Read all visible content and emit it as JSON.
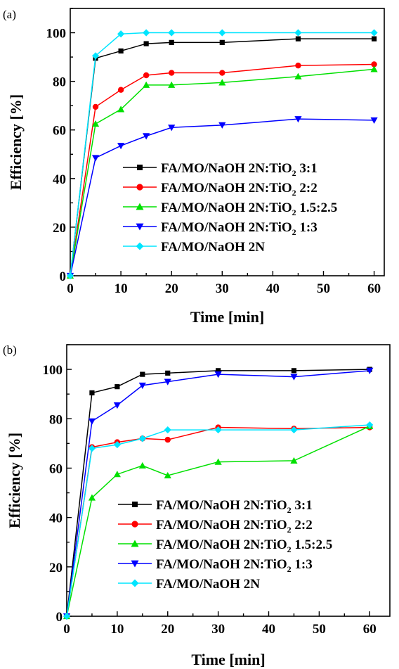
{
  "chart_data": [
    {
      "panel_label": "(a)",
      "type": "line",
      "xlabel": "Time [min]",
      "ylabel": "Efficiency [%]",
      "xlim": [
        0,
        62
      ],
      "ylim": [
        0,
        110
      ],
      "xticks": [
        0,
        10,
        20,
        30,
        40,
        50,
        60
      ],
      "yticks": [
        0,
        20,
        40,
        60,
        80,
        100
      ],
      "legend_position": "lower-right",
      "series": [
        {
          "name": "FA/MO/NaOH 2N:TiO2 3:1",
          "legend": {
            "pre": "FA/MO/NaOH 2N:TiO",
            "sub": "2",
            "post": " 3:1"
          },
          "color": "#000000",
          "marker": "square",
          "x": [
            0,
            5,
            10,
            15,
            20,
            30,
            45,
            60
          ],
          "y": [
            0,
            89.5,
            92.5,
            95.5,
            96,
            96,
            97.5,
            97.5
          ]
        },
        {
          "name": "FA/MO/NaOH 2N:TiO2 2:2",
          "legend": {
            "pre": "FA/MO/NaOH 2N:TiO",
            "sub": "2",
            "post": " 2:2"
          },
          "color": "#ff0000",
          "marker": "circle",
          "x": [
            0,
            5,
            10,
            15,
            20,
            30,
            45,
            60
          ],
          "y": [
            0,
            69.5,
            76.5,
            82.5,
            83.5,
            83.5,
            86.5,
            87
          ]
        },
        {
          "name": "FA/MO/NaOH 2N:TiO2 1.5:2.5",
          "legend": {
            "pre": "FA/MO/NaOH 2N:TiO",
            "sub": "2",
            "post": " 1.5:2.5"
          },
          "color": "#00e000",
          "marker": "triangle-up",
          "x": [
            0,
            5,
            10,
            15,
            20,
            30,
            45,
            60
          ],
          "y": [
            0,
            62.5,
            68.5,
            78.5,
            78.5,
            79.5,
            82,
            85
          ]
        },
        {
          "name": "FA/MO/NaOH 2N:TiO2 1:3",
          "legend": {
            "pre": "FA/MO/NaOH 2N:TiO",
            "sub": "2",
            "post": " 1:3"
          },
          "color": "#0000ff",
          "marker": "triangle-down",
          "x": [
            0,
            5,
            10,
            15,
            20,
            30,
            45,
            60
          ],
          "y": [
            0,
            48.5,
            53.5,
            57.5,
            61,
            62,
            64.5,
            64
          ]
        },
        {
          "name": "FA/MO/NaOH 2N",
          "legend": {
            "pre": "FA/MO/NaOH 2N",
            "sub": "",
            "post": ""
          },
          "color": "#00e5ff",
          "marker": "diamond",
          "x": [
            0,
            5,
            10,
            15,
            20,
            30,
            45,
            60
          ],
          "y": [
            0,
            90.5,
            99.5,
            100,
            100,
            100,
            100,
            100
          ]
        }
      ]
    },
    {
      "panel_label": "(b)",
      "type": "line",
      "xlabel": "Time [min]",
      "ylabel": "Efficiency [%]",
      "xlim": [
        0,
        64
      ],
      "ylim": [
        0,
        110
      ],
      "xticks": [
        0,
        10,
        20,
        30,
        40,
        50,
        60
      ],
      "yticks": [
        0,
        20,
        40,
        60,
        80,
        100
      ],
      "legend_position": "lower-right",
      "series": [
        {
          "name": "FA/MO/NaOH 2N:TiO2 3:1",
          "legend": {
            "pre": "FA/MO/NaOH 2N:TiO",
            "sub": "2",
            "post": " 3:1"
          },
          "color": "#000000",
          "marker": "square",
          "x": [
            0,
            5,
            10,
            15,
            20,
            30,
            45,
            60
          ],
          "y": [
            0,
            90.5,
            93,
            98,
            98.5,
            99.5,
            99.5,
            100
          ]
        },
        {
          "name": "FA/MO/NaOH 2N:TiO2 2:2",
          "legend": {
            "pre": "FA/MO/NaOH 2N:TiO",
            "sub": "2",
            "post": " 2:2"
          },
          "color": "#ff0000",
          "marker": "circle",
          "x": [
            0,
            5,
            10,
            15,
            20,
            30,
            45,
            60
          ],
          "y": [
            0,
            68.5,
            70.5,
            72,
            71.5,
            76.5,
            76,
            76.5
          ]
        },
        {
          "name": "FA/MO/NaOH 2N:TiO2 1.5:2.5",
          "legend": {
            "pre": "FA/MO/NaOH 2N:TiO",
            "sub": "2",
            "post": " 1.5:2.5"
          },
          "color": "#00e000",
          "marker": "triangle-up",
          "x": [
            0,
            5,
            10,
            15,
            20,
            30,
            45,
            60
          ],
          "y": [
            0,
            48,
            57.5,
            61,
            57,
            62.5,
            63,
            77
          ]
        },
        {
          "name": "FA/MO/NaOH 2N:TiO2 1:3",
          "legend": {
            "pre": "FA/MO/NaOH 2N:TiO",
            "sub": "2",
            "post": " 1:3"
          },
          "color": "#0000ff",
          "marker": "triangle-down",
          "x": [
            0,
            5,
            10,
            15,
            20,
            30,
            45,
            60
          ],
          "y": [
            0,
            79,
            85.5,
            93.5,
            95,
            98,
            97,
            99.5
          ]
        },
        {
          "name": "FA/MO/NaOH 2N",
          "legend": {
            "pre": "FA/MO/NaOH 2N",
            "sub": "",
            "post": ""
          },
          "color": "#00e5ff",
          "marker": "diamond",
          "x": [
            0,
            5,
            10,
            15,
            20,
            30,
            45,
            60
          ],
          "y": [
            0,
            68,
            69.5,
            72,
            75.5,
            75.5,
            75.5,
            77.5
          ]
        }
      ]
    }
  ]
}
